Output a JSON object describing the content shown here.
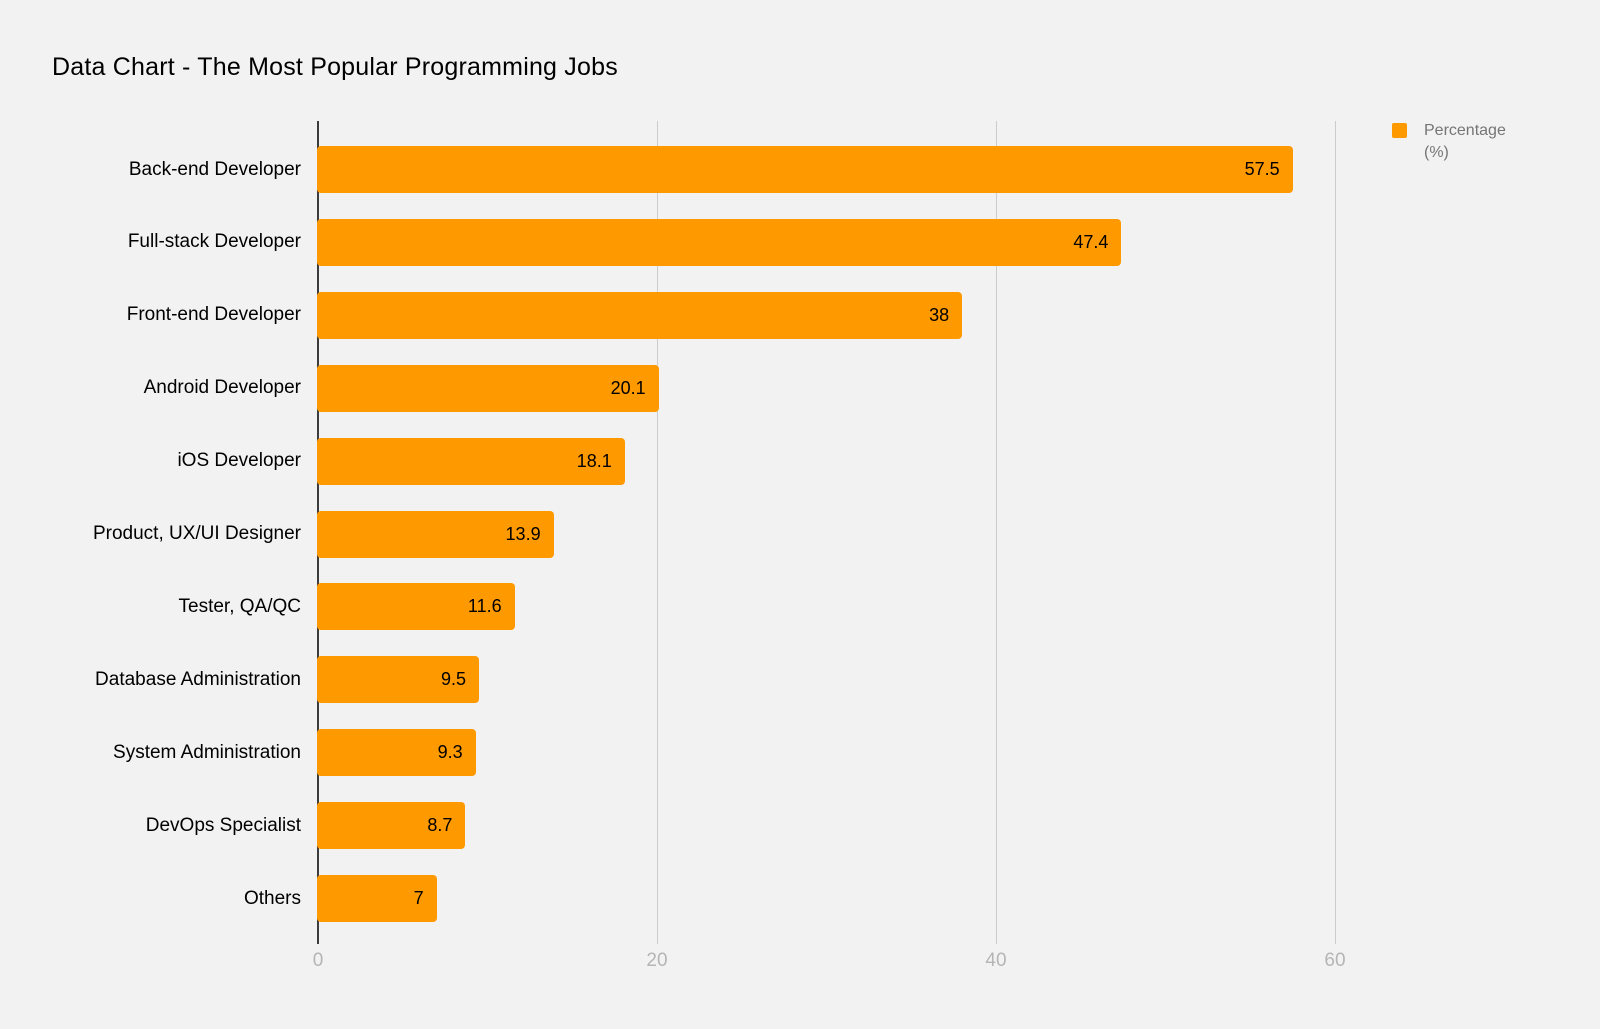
{
  "title": "Data Chart - The Most Popular Programming Jobs",
  "chart_data": {
    "type": "bar",
    "orientation": "horizontal",
    "title": "Data Chart - The Most Popular Programming Jobs",
    "categories": [
      "Back-end Developer",
      "Full-stack Developer",
      "Front-end Developer",
      "Android Developer",
      "iOS Developer",
      "Product, UX/UI Designer",
      "Tester, QA/QC",
      "Database Administration",
      "System Administration",
      "DevOps Specialist",
      "Others"
    ],
    "values": [
      57.5,
      47.4,
      38,
      20.1,
      18.1,
      13.9,
      11.6,
      9.5,
      9.3,
      8.7,
      7
    ],
    "series": [
      {
        "name": "Percentage (%)",
        "values": [
          57.5,
          47.4,
          38,
          20.1,
          18.1,
          13.9,
          11.6,
          9.5,
          9.3,
          8.7,
          7
        ]
      }
    ],
    "xlabel": "",
    "ylabel": "",
    "xlim": [
      0,
      61.5
    ],
    "x_ticks": [
      0,
      20,
      40,
      60
    ],
    "grid": true,
    "value_labels_shown": true,
    "legend_position": "top-right",
    "legend": {
      "label": "Percentage (%)",
      "swatch_color": "#ff9900"
    },
    "colors": {
      "bar": "#ff9900",
      "background": "#f2f2f2",
      "gridline": "#cccccc",
      "axis_line": "#3c3c3c",
      "tick_label": "#b5b5b5",
      "category_label": "#000000",
      "value_label": "#000000",
      "legend_text": "#757575",
      "title_text": "#000000"
    }
  }
}
